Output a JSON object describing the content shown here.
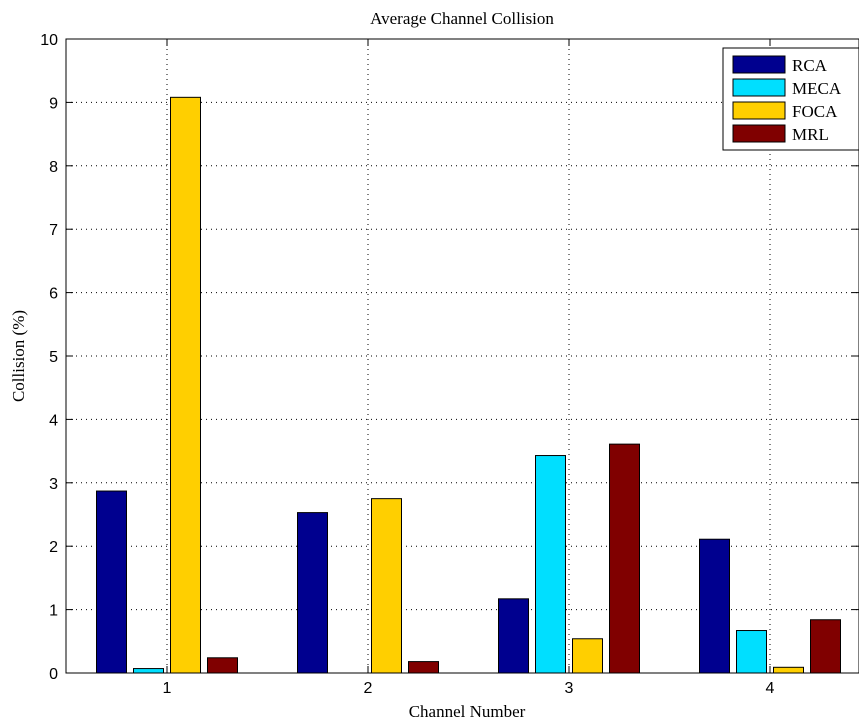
{
  "chart_data": {
    "type": "bar",
    "title": "Average Channel Collision",
    "xlabel": "Channel Number",
    "ylabel": "Collision (%)",
    "categories": [
      "1",
      "2",
      "3",
      "4"
    ],
    "ylim": [
      0,
      10
    ],
    "yticks": [
      "0",
      "1",
      "2",
      "3",
      "4",
      "5",
      "6",
      "7",
      "8",
      "9",
      "10"
    ],
    "grid": true,
    "legend_position": "top-right",
    "series": [
      {
        "name": "RCA",
        "color": "#00008f",
        "values": [
          2.87,
          2.53,
          1.17,
          2.11
        ]
      },
      {
        "name": "MECA",
        "color": "#00dfff",
        "values": [
          0.07,
          0.0,
          3.43,
          0.67
        ]
      },
      {
        "name": "FOCA",
        "color": "#ffcf00",
        "values": [
          9.08,
          2.75,
          0.54,
          0.09
        ]
      },
      {
        "name": "MRL",
        "color": "#800000",
        "values": [
          0.24,
          0.18,
          3.61,
          0.84
        ]
      }
    ]
  }
}
